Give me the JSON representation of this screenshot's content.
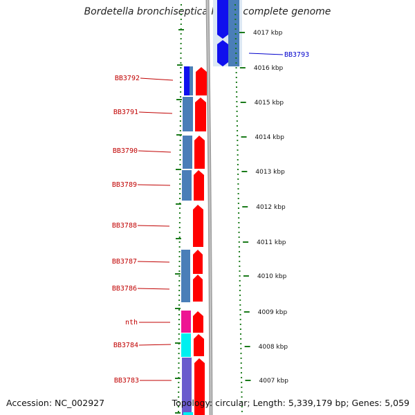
{
  "title": "Bordetella bronchiseptica RB50, complete genome",
  "accession": "Accession: NC_002927",
  "topology": "Topology: circular; Length: 5,339,179 bp; Genes: 5,059",
  "scale_labels": [
    "4017 kbp",
    "4016 kbp",
    "4015 kbp",
    "4014 kbp",
    "4013 kbp",
    "4012 kbp",
    "4011 kbp",
    "4010 kbp",
    "4009 kbp",
    "4008 kbp",
    "4007 kbp"
  ],
  "labels_left": [
    "BB3792",
    "BB3791",
    "BB3790",
    "BB3789",
    "BB3788",
    "BB3787",
    "BB3786",
    "nth",
    "BB3784",
    "BB3783"
  ],
  "labels_right": [
    "BB3793"
  ],
  "colors": {
    "label_left": "#c00000",
    "label_right": "#0000cc",
    "cds_red": "#ff0000",
    "cds_blue": "#1010ee",
    "cds_steel": "#4a7eb8",
    "cds_magenta": "#ee1493",
    "cds_cyan": "#00f0f0",
    "cds_purple": "#6a5acd",
    "backbone": "#909090",
    "tick_green": "#1a7a1a"
  }
}
